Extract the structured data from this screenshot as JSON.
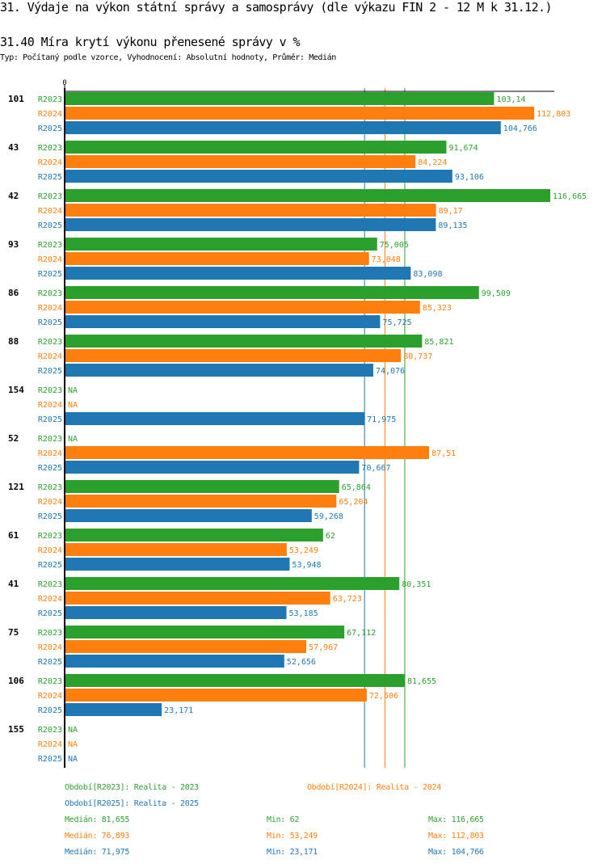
{
  "header": {
    "title": "31. Výdaje na výkon státní správy a samosprávy (dle výkazu FIN 2 - 12 M k 31.12.)",
    "subtitle": "31.40 Míra krytí výkonu přenesené správy v %",
    "meta": "Typ: Počítaný podle vzorce, Vyhodnocení: Absolutní hodnoty, Průměr: Medián"
  },
  "colors": {
    "R2023": "#2ca02c",
    "R2024": "#ff7f0e",
    "R2025": "#1f77b4",
    "axis": "#000000"
  },
  "chart_data": {
    "type": "bar",
    "orientation": "horizontal",
    "title": "31.40 Míra krytí výkonu přenesené správy v %",
    "xlabel": "",
    "ylabel": "",
    "x_tick_labels": [
      "0"
    ],
    "xlim": [
      0,
      116.665
    ],
    "grid": false,
    "categories": [
      "101",
      "43",
      "42",
      "93",
      "86",
      "88",
      "154",
      "52",
      "121",
      "61",
      "41",
      "75",
      "106",
      "155"
    ],
    "series": [
      {
        "name": "R2023",
        "label": "Realita - 2023",
        "values": [
          103.14,
          91.674,
          116.665,
          75.005,
          99.509,
          85.821,
          null,
          null,
          65.864,
          62,
          80.351,
          67.112,
          81.655,
          null
        ],
        "value_labels": [
          "103,14",
          "91,674",
          "116,665",
          "75,005",
          "99,509",
          "85,821",
          "NA",
          "NA",
          "65,864",
          "62",
          "80,351",
          "67,112",
          "81,655",
          "NA"
        ]
      },
      {
        "name": "R2024",
        "label": "Realita - 2024",
        "values": [
          112.803,
          84.224,
          89.17,
          73.048,
          85.323,
          80.737,
          null,
          87.51,
          65.204,
          53.249,
          63.723,
          57.967,
          72.506,
          null
        ],
        "value_labels": [
          "112,803",
          "84,224",
          "89,17",
          "73,048",
          "85,323",
          "80,737",
          "NA",
          "87,51",
          "65,204",
          "53,249",
          "63,723",
          "57,967",
          "72,506",
          "NA"
        ]
      },
      {
        "name": "R2025",
        "label": "Realita - 2025",
        "values": [
          104.766,
          93.106,
          89.135,
          83.098,
          75.725,
          74.076,
          71.975,
          70.667,
          59.268,
          53.948,
          53.185,
          52.656,
          23.171,
          null
        ],
        "value_labels": [
          "104,766",
          "93,106",
          "89,135",
          "83,098",
          "75,725",
          "74,076",
          "71,975",
          "70,667",
          "59,268",
          "53,948",
          "53,185",
          "52,656",
          "23,171",
          "NA"
        ]
      }
    ],
    "reference_lines": [
      {
        "series": "R2025",
        "type": "median",
        "value": 71.975
      },
      {
        "series": "R2024",
        "type": "median",
        "value": 76.893
      },
      {
        "series": "R2023",
        "type": "median",
        "value": 81.655
      }
    ],
    "legend": {
      "placement": "bottom",
      "entries": [
        {
          "series": "R2023",
          "text": "Období[R2023]: Realita - 2023"
        },
        {
          "series": "R2024",
          "text": "Období[R2024]: Realita - 2024"
        },
        {
          "series": "R2025",
          "text": "Období[R2025]: Realita - 2025"
        }
      ]
    },
    "stats": [
      {
        "series": "R2023",
        "median": "Medián: 81,655",
        "min": "Min: 62",
        "max": "Max: 116,665"
      },
      {
        "series": "R2024",
        "median": "Medián: 76,893",
        "min": "Min: 53,249",
        "max": "Max: 112,803"
      },
      {
        "series": "R2025",
        "median": "Medián: 71,975",
        "min": "Min: 23,171",
        "max": "Max: 104,766"
      }
    ]
  }
}
